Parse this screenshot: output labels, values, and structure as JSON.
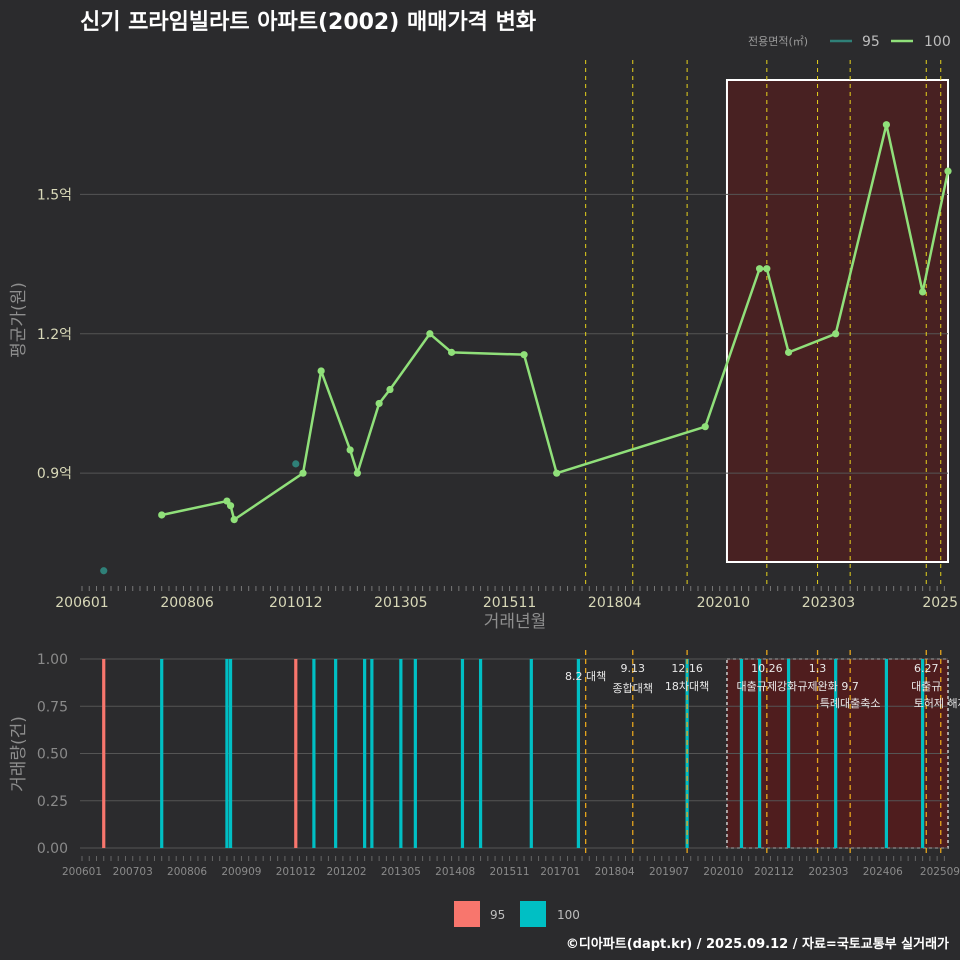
{
  "title": "신기 프라임빌라트 아파트(2002) 매매가격 변화",
  "footer": "©디아파트(dapt.kr) / 2025.09.12 / 자료=국토교통부 실거래가",
  "colors": {
    "background": "#2b2b2d",
    "line100": "#90e07a",
    "point95": "#2f8078",
    "bar95": "#f8766d",
    "bar100": "#00bfc4",
    "policy": "#e6d21c",
    "highlight_fill": "#5c1a1a",
    "grid": "#555555"
  },
  "chart_data": [
    {
      "type": "line",
      "title": "신기 프라임빌라트 아파트(2002) 매매가격 변화",
      "xlabel": "거래년월",
      "ylabel": "평균가(원)",
      "x_ticks": [
        "200601",
        "200806",
        "201012",
        "201305",
        "201511",
        "201804",
        "202010",
        "202303",
        "2025"
      ],
      "y_ticks": [
        {
          "value": 0.9,
          "label": "0.9억"
        },
        {
          "value": 1.2,
          "label": "1.2억"
        },
        {
          "value": 1.5,
          "label": "1.5억"
        }
      ],
      "xlim": [
        "2006-01",
        "2025-12"
      ],
      "ylim": [
        0.655,
        1.8
      ],
      "legend": {
        "title": "전용면적(㎡)",
        "position": "top-right",
        "entries": [
          "95",
          "100"
        ]
      },
      "grid": true,
      "series": [
        {
          "name": "100",
          "color": "#90e07a",
          "points": [
            [
              "2007-11",
              0.81
            ],
            [
              "2009-05",
              0.84
            ],
            [
              "2009-06",
              0.83
            ],
            [
              "2009-07",
              0.8
            ],
            [
              "2011-02",
              0.9
            ],
            [
              "2011-07",
              1.12
            ],
            [
              "2012-03",
              0.95
            ],
            [
              "2012-05",
              0.9
            ],
            [
              "2012-11",
              1.05
            ],
            [
              "2013-02",
              1.08
            ],
            [
              "2014-01",
              1.2
            ],
            [
              "2014-07",
              1.16
            ],
            [
              "2016-03",
              1.155
            ],
            [
              "2016-12",
              0.9
            ],
            [
              "2020-05",
              1.0
            ],
            [
              "2021-08",
              1.34
            ],
            [
              "2021-10",
              1.34
            ],
            [
              "2022-04",
              1.16
            ],
            [
              "2023-05",
              1.2
            ],
            [
              "2024-07",
              1.65
            ],
            [
              "2025-05",
              1.29
            ],
            [
              "2025-12",
              1.55
            ]
          ]
        },
        {
          "name": "95",
          "color": "#2f8078",
          "points": [
            [
              "2006-07",
              0.69
            ],
            [
              "2010-12",
              0.92
            ]
          ]
        }
      ],
      "policy_dates": [
        "2017-08",
        "2018-09",
        "2019-12",
        "2021-10",
        "2022-12",
        "2023-09",
        "2025-06",
        "2025-10"
      ],
      "highlight": {
        "from": "2020-11",
        "to": "2025-12"
      }
    },
    {
      "type": "bar",
      "xlabel": "",
      "ylabel": "거래량(건)",
      "x_ticks": [
        "200601",
        "200703",
        "200806",
        "200909",
        "201012",
        "201202",
        "201305",
        "201408",
        "201511",
        "201701",
        "201804",
        "201907",
        "202010",
        "202112",
        "202303",
        "202406",
        "202509"
      ],
      "y_ticks": [
        "0.00",
        "0.25",
        "0.50",
        "0.75",
        "1.00"
      ],
      "ylim": [
        0,
        1
      ],
      "legend": {
        "position": "bottom",
        "entries": [
          "95",
          "100"
        ]
      },
      "grid": true,
      "bars": [
        {
          "month": "2006-07",
          "series": "95",
          "value": 1
        },
        {
          "month": "2007-11",
          "series": "100",
          "value": 1
        },
        {
          "month": "2009-05",
          "series": "100",
          "value": 1
        },
        {
          "month": "2009-06",
          "series": "100",
          "value": 1
        },
        {
          "month": "2010-12",
          "series": "95",
          "value": 1
        },
        {
          "month": "2011-05",
          "series": "100",
          "value": 1
        },
        {
          "month": "2011-11",
          "series": "100",
          "value": 1
        },
        {
          "month": "2012-07",
          "series": "100",
          "value": 1
        },
        {
          "month": "2012-09",
          "series": "100",
          "value": 1
        },
        {
          "month": "2013-05",
          "series": "100",
          "value": 1
        },
        {
          "month": "2013-09",
          "series": "100",
          "value": 1
        },
        {
          "month": "2014-10",
          "series": "100",
          "value": 1
        },
        {
          "month": "2015-03",
          "series": "100",
          "value": 1
        },
        {
          "month": "2016-05",
          "series": "100",
          "value": 1
        },
        {
          "month": "2017-06",
          "series": "100",
          "value": 1
        },
        {
          "month": "2019-12",
          "series": "100",
          "value": 1
        },
        {
          "month": "2021-03",
          "series": "100",
          "value": 1
        },
        {
          "month": "2021-08",
          "series": "100",
          "value": 1
        },
        {
          "month": "2022-04",
          "series": "100",
          "value": 1
        },
        {
          "month": "2023-05",
          "series": "100",
          "value": 1
        },
        {
          "month": "2024-07",
          "series": "100",
          "value": 1
        },
        {
          "month": "2025-05",
          "series": "100",
          "value": 1
        }
      ],
      "policy_notes": [
        {
          "month": "2017-08",
          "lines": [
            "8.2 대책"
          ]
        },
        {
          "month": "2018-09",
          "lines": [
            "9.13",
            "종합대책"
          ]
        },
        {
          "month": "2019-12",
          "lines": [
            "12.16",
            "18차대책"
          ]
        },
        {
          "month": "2021-10",
          "lines": [
            "10.26",
            "대출규제강화"
          ]
        },
        {
          "month": "2022-12",
          "lines": [
            "1.3",
            "규제완화"
          ]
        },
        {
          "month": "2023-09",
          "lines": [
            "9.7",
            "특례대출축소"
          ]
        },
        {
          "month": "2025-06",
          "lines": [
            "6.27",
            "대출규"
          ]
        },
        {
          "month": "2025-10",
          "lines": [
            "토허제 해제"
          ]
        }
      ],
      "highlight": {
        "from": "2020-11",
        "to": "2025-12"
      }
    }
  ]
}
